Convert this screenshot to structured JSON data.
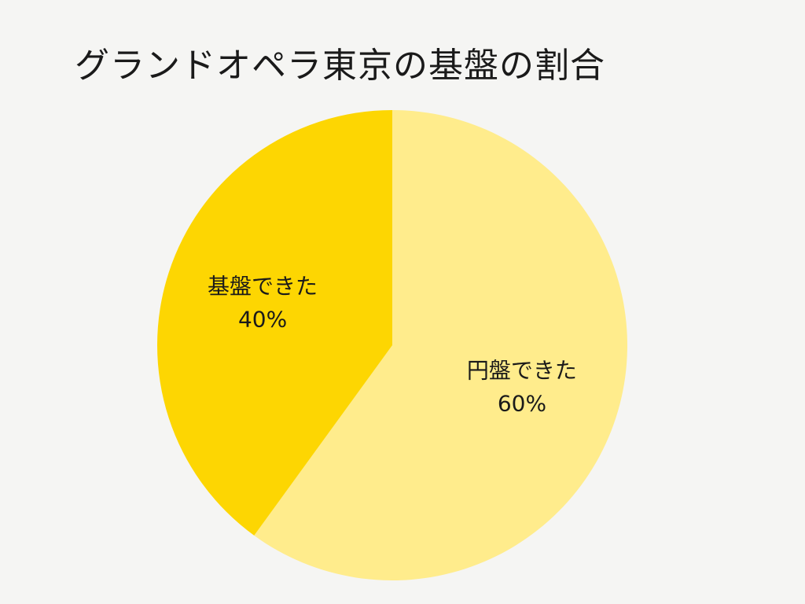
{
  "chart_data": {
    "type": "pie",
    "title": "グランドオペラ東京の基盤の割合",
    "slices": [
      {
        "label": "円盤できた",
        "value": 60,
        "value_label": "60%",
        "color": "#ffec8c"
      },
      {
        "label": "基盤できた",
        "value": 40,
        "value_label": "40%",
        "color": "#fdd602"
      }
    ],
    "start": "12 o'clock",
    "direction": "clockwise",
    "legend": "none",
    "data_labels": "inside slices"
  },
  "colors": {
    "background": "#f5f5f3",
    "text": "#1a1a1a"
  }
}
